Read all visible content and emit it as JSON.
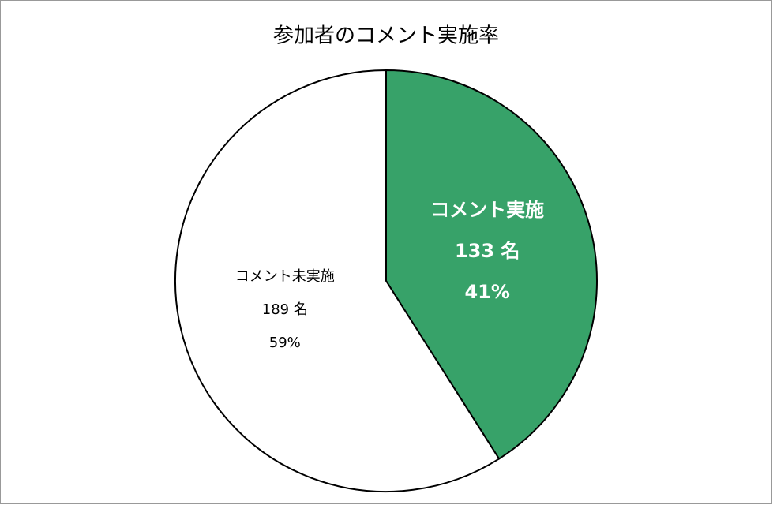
{
  "chart_data": {
    "type": "pie",
    "title": "参加者のコメント実施率",
    "categories": [
      "コメント実施",
      "コメント未実施"
    ],
    "values": [
      41,
      59
    ],
    "value_labels": [
      "41%",
      "59%"
    ],
    "counts": [
      133,
      189
    ],
    "count_labels": [
      "133 名",
      "189 名"
    ],
    "colors": [
      "#37a269",
      "#ffffff"
    ]
  }
}
